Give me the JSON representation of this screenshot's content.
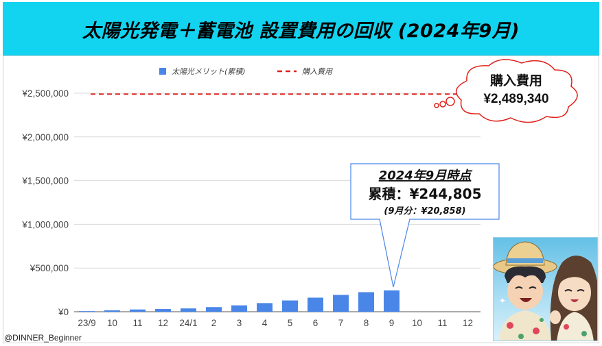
{
  "banner": {
    "title": "太陽光発電＋蓄電池 設置費用の回収 (2024年9月)"
  },
  "credit": "@DINNER_Beginner",
  "colors": {
    "banner_bg": "#12d3f0",
    "bar": "#4a86e8",
    "purchase_line": "#e0201b",
    "grid": "#d9d9d9"
  },
  "chart_data": {
    "type": "bar",
    "categories": [
      "23/9",
      "10",
      "11",
      "12",
      "24/1",
      "2",
      "3",
      "4",
      "5",
      "6",
      "7",
      "8",
      "9",
      "10",
      "11",
      "12"
    ],
    "series": [
      {
        "name": "太陽光メリット(累積)",
        "type": "bar",
        "values": [
          7000,
          17000,
          26000,
          31000,
          38000,
          53000,
          73000,
          99000,
          129000,
          161000,
          193000,
          223947,
          244805,
          null,
          null,
          null
        ]
      },
      {
        "name": "購入費用",
        "type": "line",
        "style": "dashed",
        "values": [
          2489340,
          2489340,
          2489340,
          2489340,
          2489340,
          2489340,
          2489340,
          2489340,
          2489340,
          2489340,
          2489340,
          2489340,
          2489340,
          2489340,
          2489340,
          2489340
        ]
      }
    ],
    "y_ticks": [
      "¥0",
      "¥500,000",
      "¥1,000,000",
      "¥1,500,000",
      "¥2,000,000",
      "¥2,500,000"
    ],
    "ylim": [
      0,
      2500000
    ],
    "grid": true,
    "legend_position": "top-center",
    "annotations": {
      "purchase_cloud": {
        "line1": "購入費用",
        "line2": "¥2,489,340"
      },
      "callout": {
        "line1": "2024年9月時点",
        "line2": "累積：¥244,805",
        "line3": "(9月分：¥20,858)"
      }
    }
  },
  "illustration": {
    "icon": "two-anime-characters-avatar"
  }
}
